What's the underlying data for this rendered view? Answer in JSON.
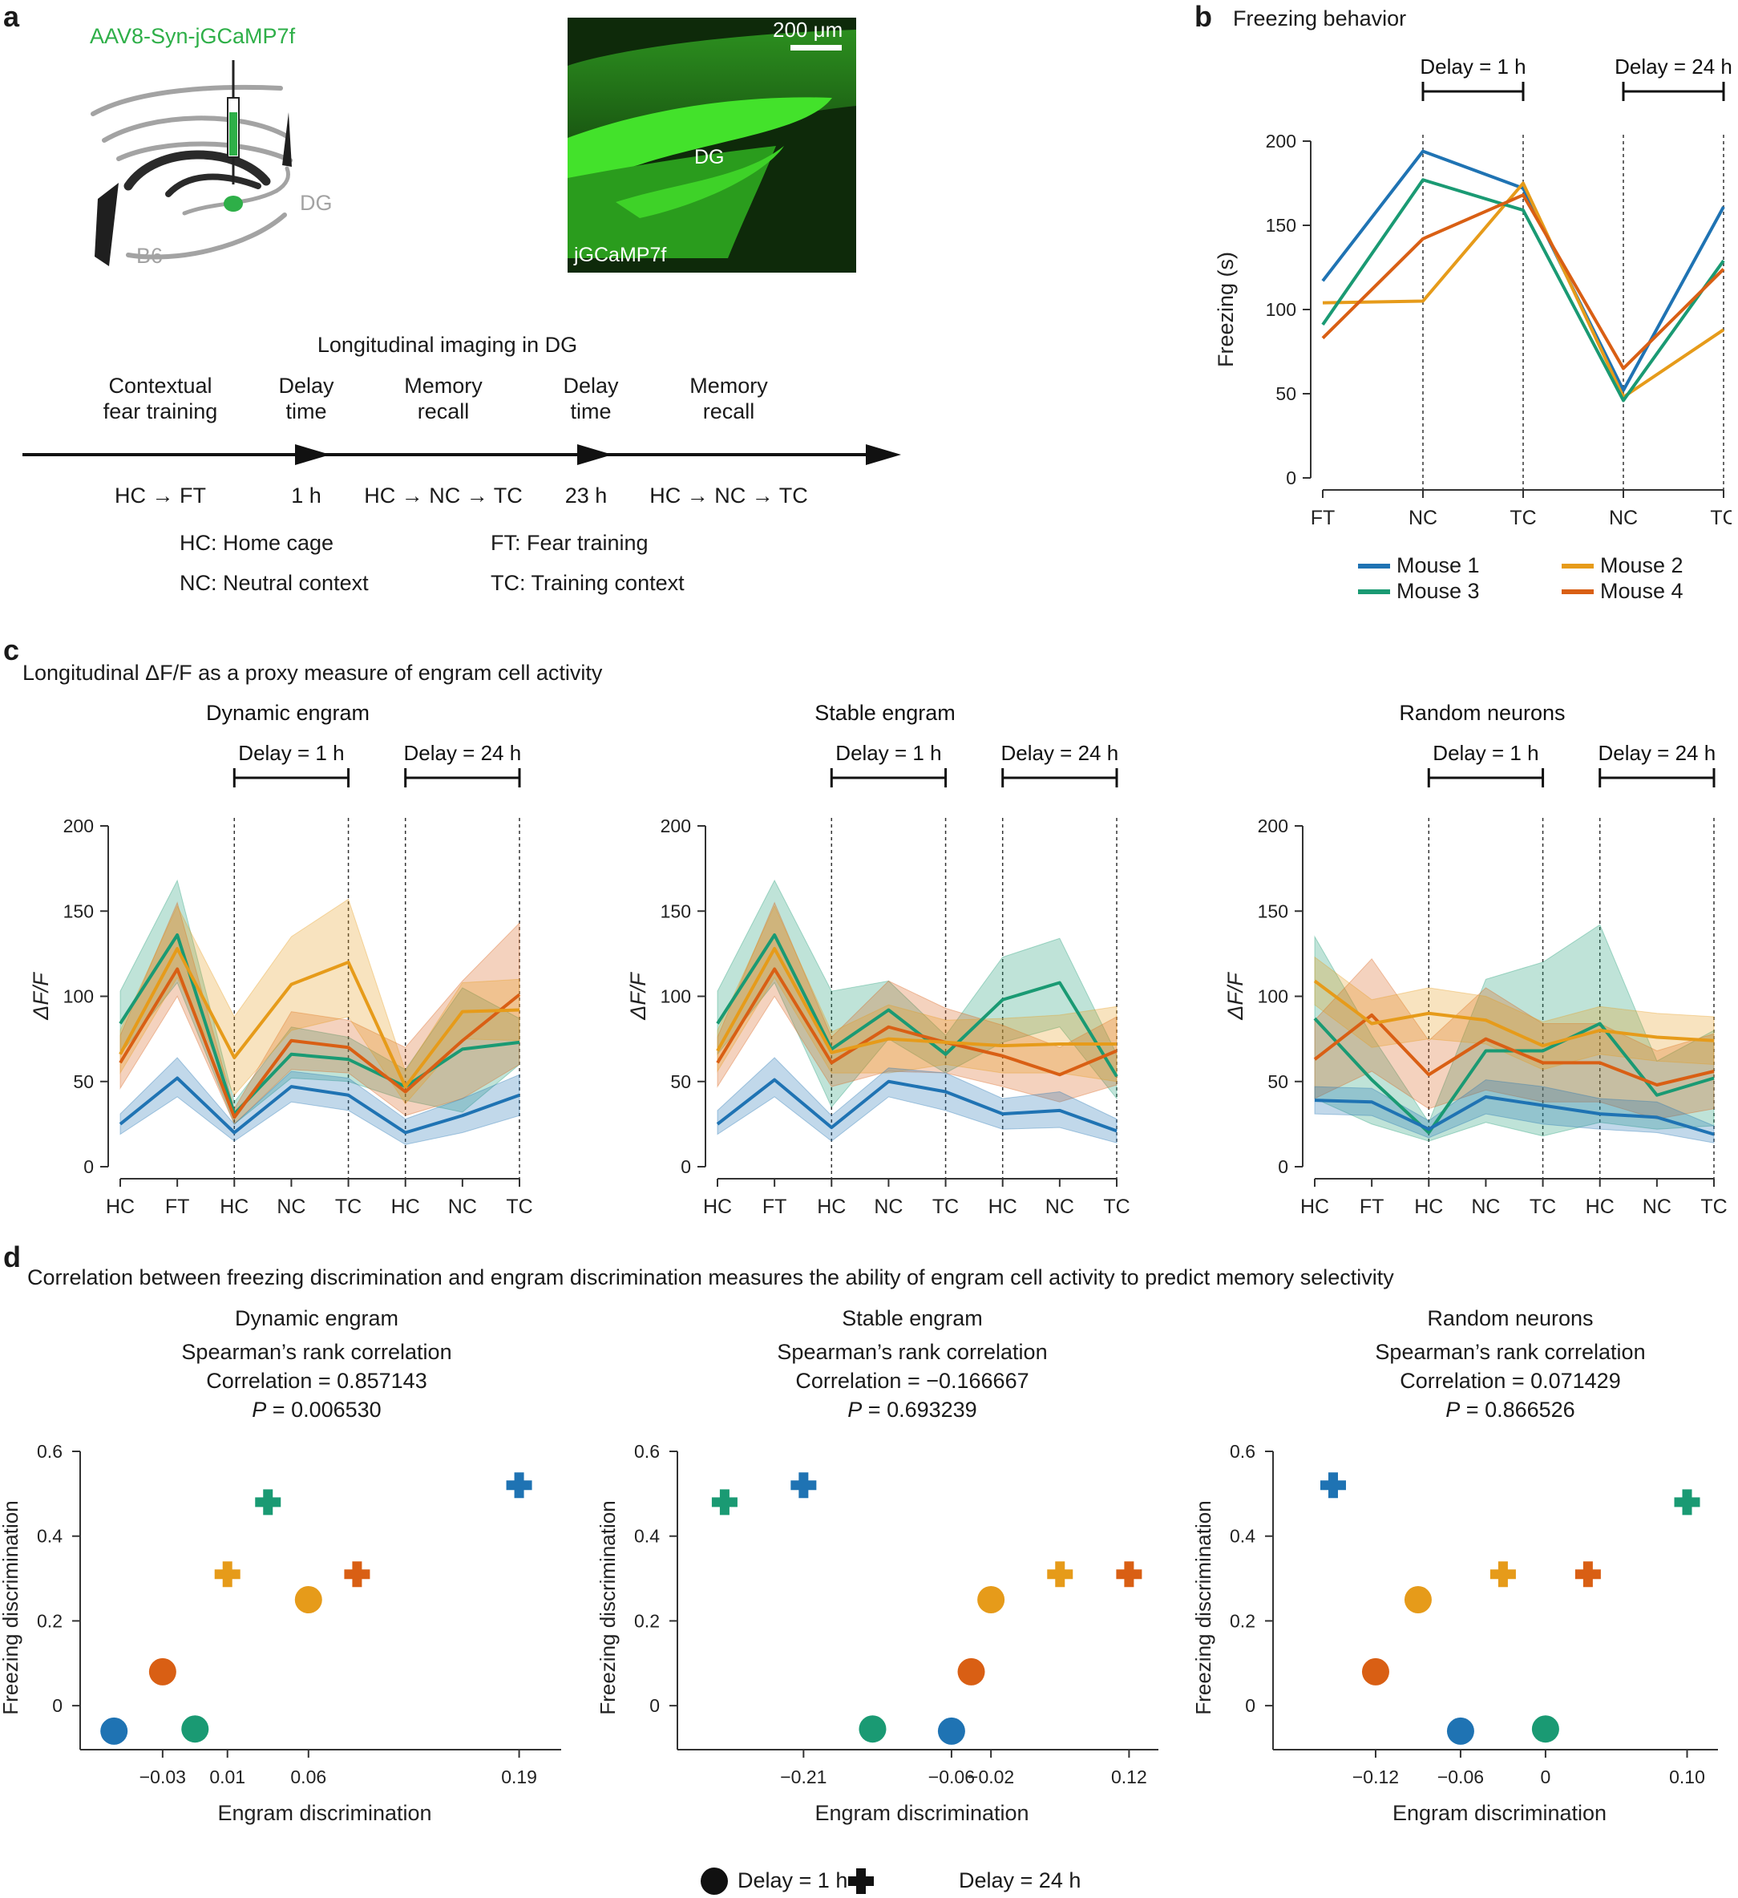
{
  "panel_labels": {
    "a": "a",
    "b": "b",
    "c": "c",
    "d": "d"
  },
  "colors": {
    "mouse1": "#1f73b3",
    "mouse2": "#e69b1a",
    "mouse3": "#1a9a73",
    "mouse4": "#d95f14",
    "injection": "#2eaf48",
    "gray": "#a3a3a3"
  },
  "panel_a": {
    "virus": "AAV8-Syn-jGCaMP7f",
    "brain_region": "DG",
    "strain": "B6",
    "scale_bar": "200 μm",
    "image_region": "DG",
    "image_label": "jGCaMP7f",
    "timeline_title": "Longitudinal imaging in DG",
    "stages": [
      {
        "line1": "Contextual",
        "line2": "fear training",
        "below": "HC → FT"
      },
      {
        "line1": "Delay",
        "line2": "time",
        "below": "1 h"
      },
      {
        "line1": "Memory",
        "line2": "recall",
        "below": "HC → NC → TC"
      },
      {
        "line1": "Delay",
        "line2": "time",
        "below": "23 h"
      },
      {
        "line1": "Memory",
        "line2": "recall",
        "below": "HC → NC → TC"
      }
    ],
    "abbreviations": [
      "HC: Home cage",
      "FT: Fear training",
      "NC: Neutral context",
      "TC: Training context"
    ]
  },
  "legend_markers": {
    "delay1": "Delay = 1 h",
    "delay24": "Delay = 24 h"
  },
  "chart_data": [
    {
      "id": "b",
      "type": "line",
      "title": "Freezing behavior",
      "ylabel": "Freezing (s)",
      "xlabel": "",
      "categories": [
        "FT",
        "NC",
        "TC",
        "NC",
        "TC"
      ],
      "ylim": [
        0,
        200
      ],
      "yticks": [
        0,
        50,
        100,
        150,
        200
      ],
      "brackets": [
        "Delay = 1 h",
        "Delay = 24 h"
      ],
      "series": [
        {
          "name": "Mouse 1",
          "color_key": "mouse1",
          "values": [
            117,
            194,
            172,
            52,
            161
          ]
        },
        {
          "name": "Mouse 2",
          "color_key": "mouse2",
          "values": [
            104,
            105,
            175,
            48,
            88
          ]
        },
        {
          "name": "Mouse 3",
          "color_key": "mouse3",
          "values": [
            91,
            177,
            159,
            46,
            129
          ]
        },
        {
          "name": "Mouse 4",
          "color_key": "mouse4",
          "values": [
            83,
            142,
            168,
            65,
            124
          ]
        }
      ]
    },
    {
      "id": "c",
      "type": "area",
      "title": "Longitudinal ΔF/F as a proxy measure of engram cell activity",
      "ylabel": "ΔF/F",
      "categories": [
        "HC",
        "FT",
        "HC",
        "NC",
        "TC",
        "HC",
        "NC",
        "TC"
      ],
      "ylim": [
        0,
        200
      ],
      "yticks": [
        0,
        50,
        100,
        150,
        200
      ],
      "brackets": [
        "Delay = 1 h",
        "Delay = 24 h"
      ],
      "subplots": [
        {
          "title": "Dynamic engram",
          "series": [
            {
              "color_key": "mouse1",
              "values": [
                25,
                52,
                20,
                47,
                42,
                20,
                30,
                42
              ],
              "lower": [
                19,
                41,
                15,
                38,
                33,
                13,
                20,
                30
              ],
              "upper": [
                31,
                64,
                25,
                56,
                52,
                28,
                40,
                54
              ]
            },
            {
              "color_key": "mouse2",
              "values": [
                66,
                128,
                64,
                107,
                120,
                47,
                91,
                92
              ],
              "lower": [
                55,
                111,
                42,
                80,
                88,
                37,
                75,
                74
              ],
              "upper": [
                80,
                153,
                88,
                135,
                157,
                56,
                108,
                110
              ]
            },
            {
              "color_key": "mouse3",
              "values": [
                84,
                136,
                31,
                66,
                63,
                47,
                69,
                73
              ],
              "lower": [
                66,
                108,
                25,
                52,
                50,
                39,
                32,
                60
              ],
              "upper": [
                103,
                168,
                38,
                82,
                76,
                57,
                105,
                87
              ]
            },
            {
              "color_key": "mouse4",
              "values": [
                61,
                116,
                29,
                74,
                70,
                44,
                74,
                101
              ],
              "lower": [
                46,
                100,
                25,
                57,
                55,
                30,
                40,
                60
              ],
              "upper": [
                77,
                155,
                34,
                91,
                86,
                70,
                109,
                143
              ]
            }
          ]
        },
        {
          "title": "Stable engram",
          "series": [
            {
              "color_key": "mouse1",
              "values": [
                25,
                51,
                23,
                50,
                44,
                31,
                33,
                21
              ],
              "lower": [
                19,
                41,
                15,
                41,
                33,
                22,
                23,
                14
              ],
              "upper": [
                33,
                64,
                30,
                58,
                55,
                40,
                44,
                28
              ]
            },
            {
              "color_key": "mouse2",
              "values": [
                68,
                128,
                67,
                75,
                73,
                71,
                72,
                72
              ],
              "lower": [
                56,
                111,
                55,
                55,
                60,
                55,
                55,
                50
              ],
              "upper": [
                80,
                153,
                79,
                95,
                86,
                87,
                89,
                94
              ]
            },
            {
              "color_key": "mouse3",
              "values": [
                84,
                136,
                69,
                92,
                66,
                98,
                108,
                53
              ],
              "lower": [
                66,
                108,
                35,
                75,
                55,
                73,
                82,
                40
              ],
              "upper": [
                103,
                168,
                103,
                109,
                77,
                123,
                134,
                66
              ]
            },
            {
              "color_key": "mouse4",
              "values": [
                61,
                116,
                61,
                82,
                73,
                65,
                54,
                68
              ],
              "lower": [
                47,
                100,
                47,
                56,
                55,
                47,
                38,
                48
              ],
              "upper": [
                76,
                155,
                76,
                109,
                93,
                83,
                70,
                88
              ]
            }
          ]
        },
        {
          "title": "Random neurons",
          "series": [
            {
              "color_key": "mouse1",
              "values": [
                39,
                38,
                22,
                41,
                36,
                31,
                29,
                19
              ],
              "lower": [
                31,
                30,
                17,
                31,
                25,
                22,
                20,
                14
              ],
              "upper": [
                47,
                46,
                27,
                51,
                47,
                40,
                38,
                24
              ]
            },
            {
              "color_key": "mouse2",
              "values": [
                109,
                84,
                90,
                86,
                71,
                80,
                76,
                74
              ],
              "lower": [
                95,
                70,
                75,
                72,
                57,
                66,
                62,
                60
              ],
              "upper": [
                123,
                98,
                105,
                100,
                85,
                94,
                90,
                88
              ]
            },
            {
              "color_key": "mouse3",
              "values": [
                87,
                51,
                20,
                68,
                68,
                84,
                42,
                52
              ],
              "lower": [
                40,
                25,
                15,
                26,
                18,
                26,
                22,
                24
              ],
              "upper": [
                135,
                77,
                26,
                110,
                120,
                142,
                62,
                80
              ]
            },
            {
              "color_key": "mouse4",
              "values": [
                63,
                89,
                54,
                75,
                61,
                61,
                48,
                56
              ],
              "lower": [
                40,
                56,
                34,
                45,
                38,
                38,
                28,
                34
              ],
              "upper": [
                86,
                122,
                74,
                105,
                84,
                84,
                68,
                78
              ]
            }
          ]
        }
      ]
    },
    {
      "id": "d",
      "type": "scatter",
      "title": "Correlation between freezing discrimination and engram discrimination measures the ability of engram cell activity to predict memory selectivity",
      "xlabel": "Engram discrimination",
      "ylabel": "Freezing discrimination",
      "ylim": [
        -0.1,
        0.6
      ],
      "yticks": [
        "0",
        "0.2",
        "0.4",
        "0.6"
      ],
      "subplots": [
        {
          "title": "Dynamic engram",
          "stat_name": "Spearman’s rank correlation",
          "correlation_text": "Correlation = 0.857143",
          "p_label": "P",
          "p_value": " = 0.006530",
          "xlim": [
            -0.07,
            0.21
          ],
          "xticks": [
            "-0.03",
            "0.01",
            "0.06",
            "0.19"
          ],
          "xtick_values": [
            -0.03,
            0.01,
            0.06,
            0.19
          ],
          "points": [
            {
              "mouse": "mouse1",
              "marker": "circle",
              "x": -0.06,
              "y": -0.06
            },
            {
              "mouse": "mouse4",
              "marker": "circle",
              "x": -0.03,
              "y": 0.08
            },
            {
              "mouse": "mouse3",
              "marker": "circle",
              "x": -0.01,
              "y": -0.055
            },
            {
              "mouse": "mouse2",
              "marker": "circle",
              "x": 0.06,
              "y": 0.25
            },
            {
              "mouse": "mouse2",
              "marker": "plus",
              "x": 0.01,
              "y": 0.31
            },
            {
              "mouse": "mouse3",
              "marker": "plus",
              "x": 0.035,
              "y": 0.48
            },
            {
              "mouse": "mouse4",
              "marker": "plus",
              "x": 0.09,
              "y": 0.31
            },
            {
              "mouse": "mouse1",
              "marker": "plus",
              "x": 0.19,
              "y": 0.52
            }
          ]
        },
        {
          "title": "Stable engram",
          "stat_name": "Spearman’s rank correlation",
          "correlation_text": "Correlation = −0.166667",
          "p_label": "P",
          "p_value": " = 0.693239",
          "xlim": [
            -0.32,
            0.14
          ],
          "xticks": [
            "-0.21",
            "-0.06",
            "-0.02",
            "0.12"
          ],
          "xtick_values": [
            -0.21,
            -0.06,
            -0.02,
            0.12
          ],
          "points": [
            {
              "mouse": "mouse3",
              "marker": "plus",
              "x": -0.29,
              "y": 0.48
            },
            {
              "mouse": "mouse1",
              "marker": "plus",
              "x": -0.21,
              "y": 0.52
            },
            {
              "mouse": "mouse3",
              "marker": "circle",
              "x": -0.14,
              "y": -0.055
            },
            {
              "mouse": "mouse1",
              "marker": "circle",
              "x": -0.06,
              "y": -0.06
            },
            {
              "mouse": "mouse4",
              "marker": "circle",
              "x": -0.04,
              "y": 0.08
            },
            {
              "mouse": "mouse2",
              "marker": "circle",
              "x": -0.02,
              "y": 0.25
            },
            {
              "mouse": "mouse2",
              "marker": "plus",
              "x": 0.05,
              "y": 0.31
            },
            {
              "mouse": "mouse4",
              "marker": "plus",
              "x": 0.12,
              "y": 0.31
            }
          ]
        },
        {
          "title": "Random neurons",
          "stat_name": "Spearman’s rank correlation",
          "correlation_text": "Correlation = 0.071429",
          "p_label": "P",
          "p_value": " = 0.866526",
          "xlim": [
            -0.18,
            0.115
          ],
          "xticks": [
            "-0.12",
            "-0.06",
            "0",
            "0.10"
          ],
          "xtick_values": [
            -0.12,
            -0.06,
            0,
            0.1
          ],
          "points": [
            {
              "mouse": "mouse1",
              "marker": "plus",
              "x": -0.15,
              "y": 0.52
            },
            {
              "mouse": "mouse4",
              "marker": "circle",
              "x": -0.12,
              "y": 0.08
            },
            {
              "mouse": "mouse2",
              "marker": "circle",
              "x": -0.09,
              "y": 0.25
            },
            {
              "mouse": "mouse1",
              "marker": "circle",
              "x": -0.06,
              "y": -0.06
            },
            {
              "mouse": "mouse2",
              "marker": "plus",
              "x": -0.03,
              "y": 0.31
            },
            {
              "mouse": "mouse3",
              "marker": "circle",
              "x": 0,
              "y": -0.055
            },
            {
              "mouse": "mouse4",
              "marker": "plus",
              "x": 0.03,
              "y": 0.31
            },
            {
              "mouse": "mouse3",
              "marker": "plus",
              "x": 0.1,
              "y": 0.48
            }
          ]
        }
      ]
    }
  ]
}
